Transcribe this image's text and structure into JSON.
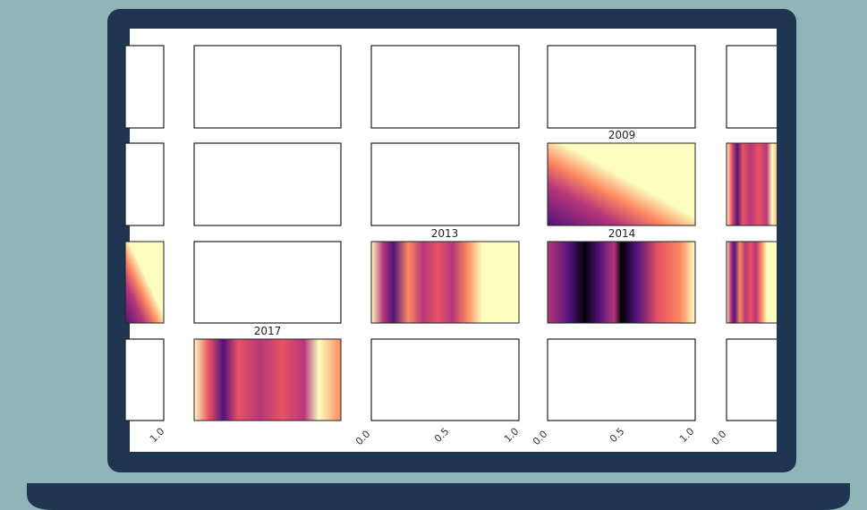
{
  "plots": [
    {
      "title": "2009"
    },
    {
      "title": "2013"
    },
    {
      "title": "2014"
    },
    {
      "title": "2017"
    }
  ],
  "x_tick_labels": [
    "1.0",
    "0.0",
    "0.5",
    "1.0",
    "0.0",
    "0.5",
    "1.0",
    "0.0"
  ]
}
